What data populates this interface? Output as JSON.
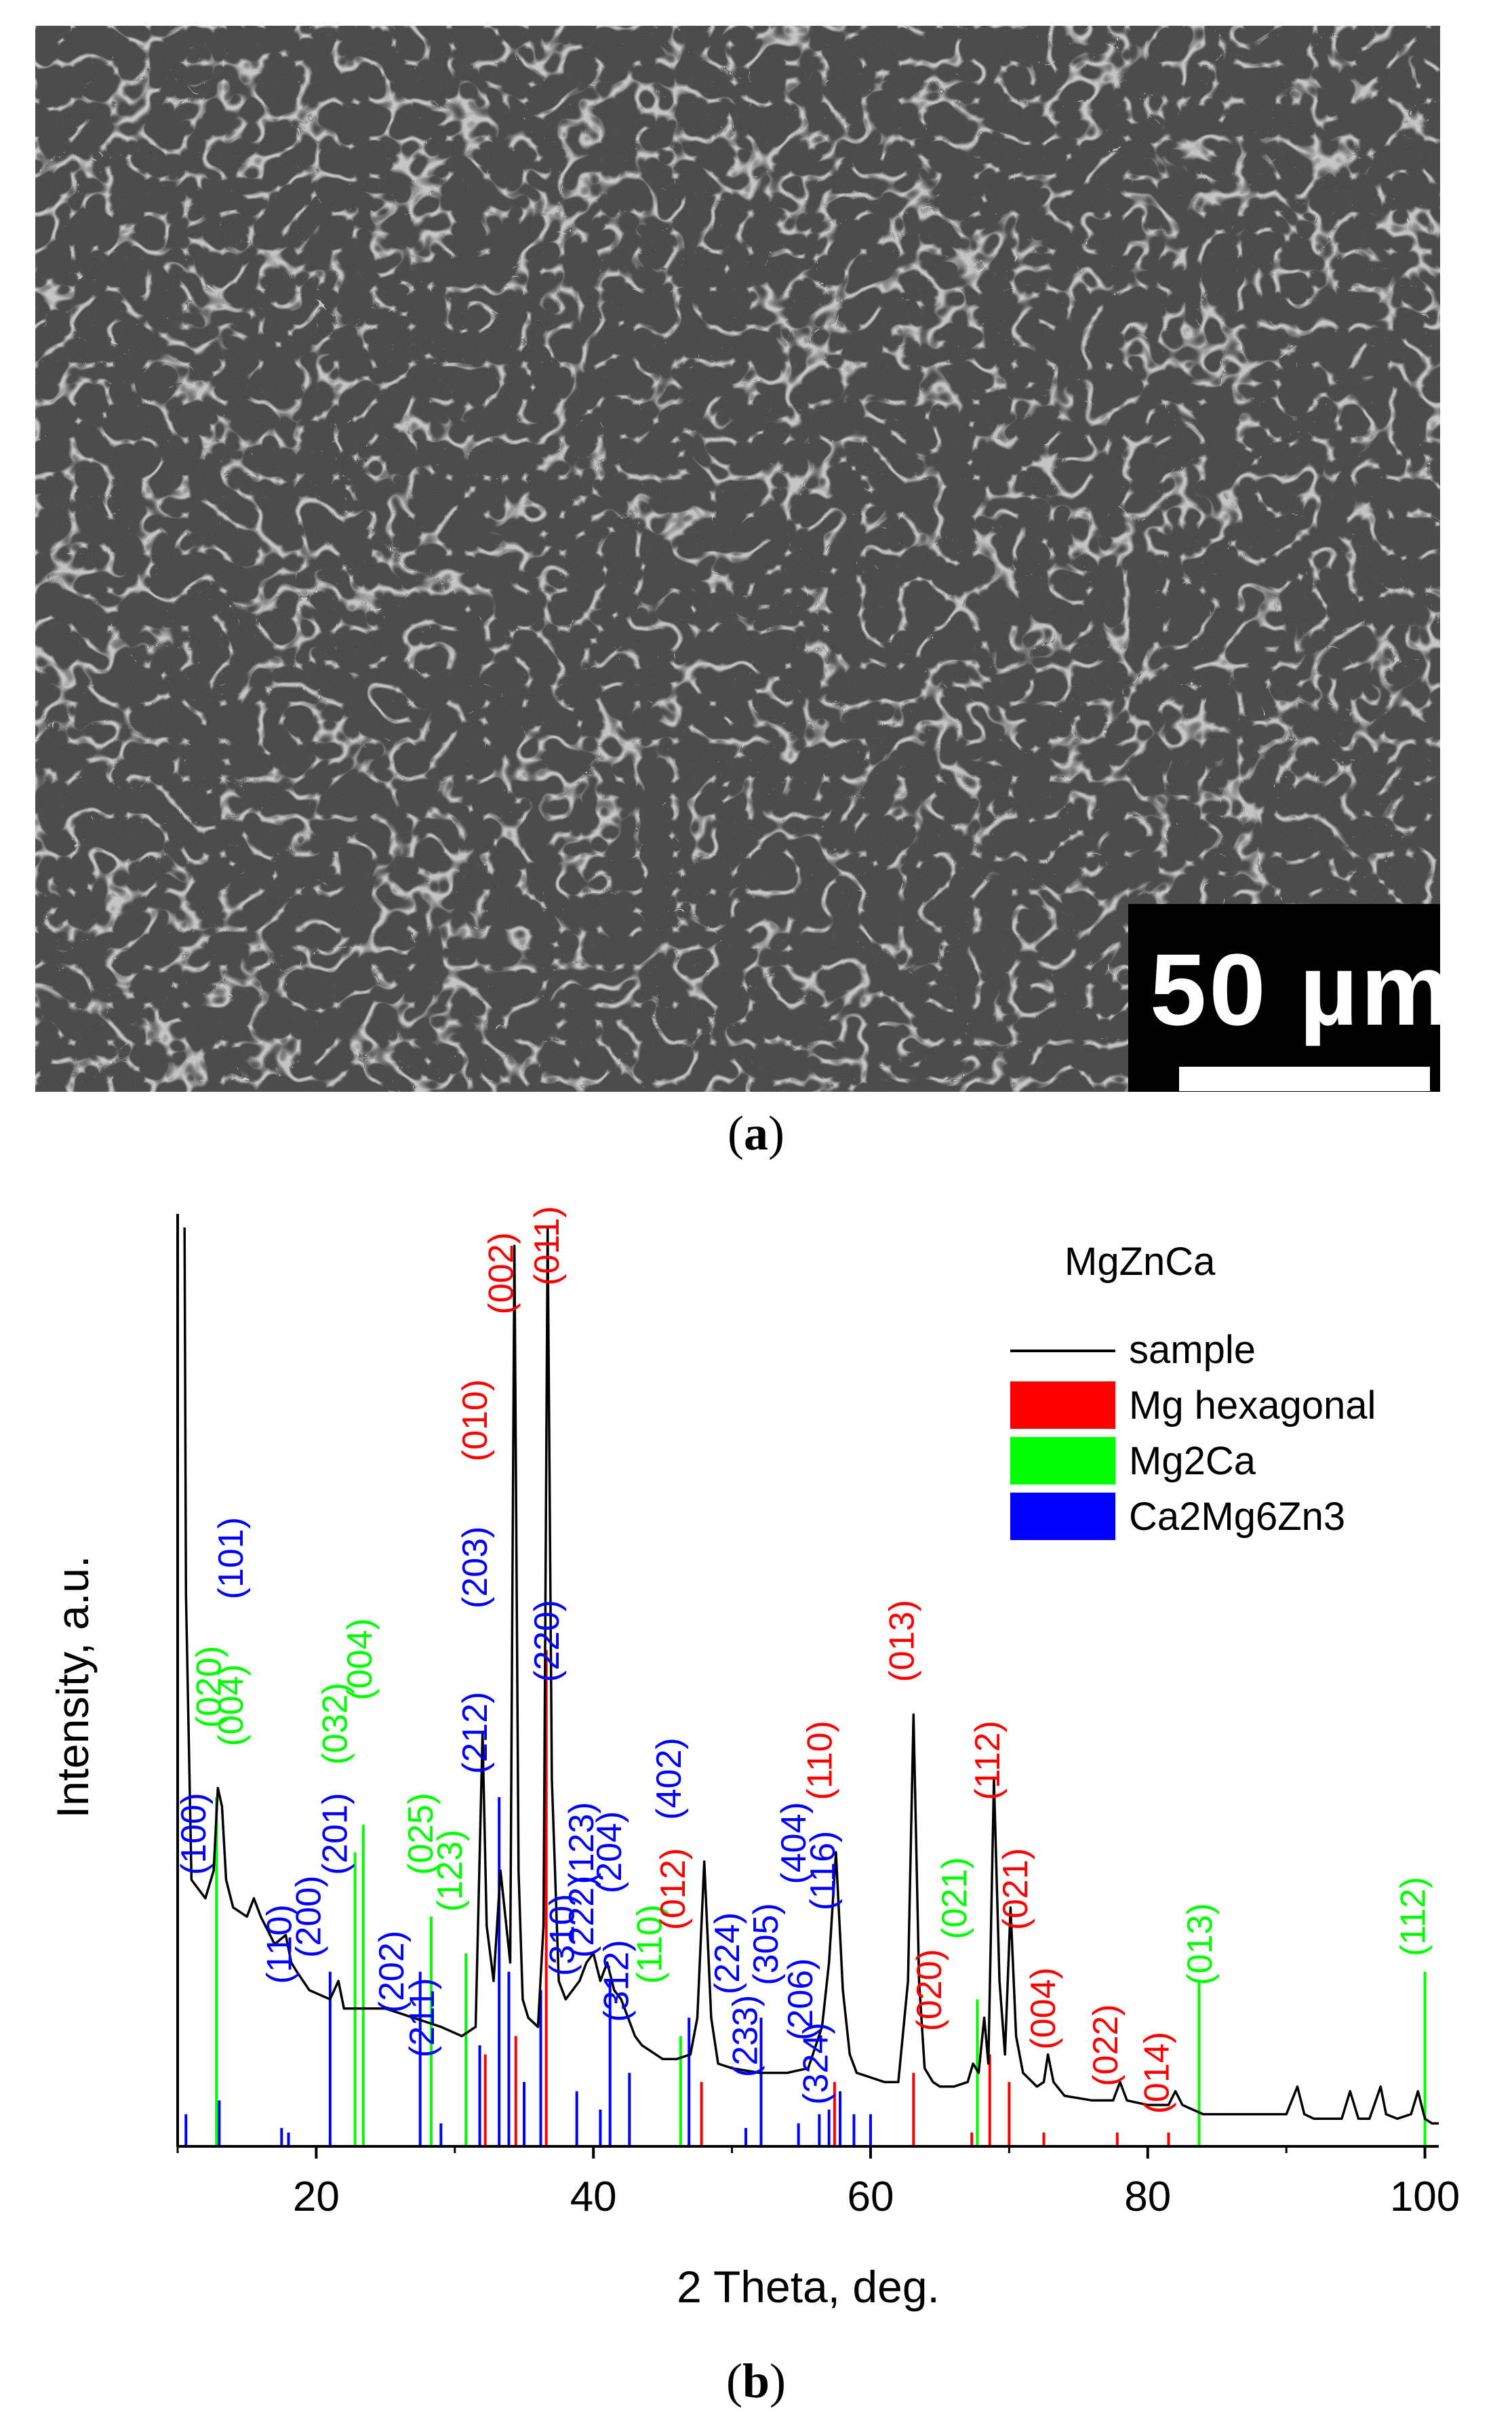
{
  "panel_a": {
    "scale_label": "50 µm",
    "caption": "a"
  },
  "panel_b": {
    "caption": "b"
  },
  "chart_data": {
    "type": "line",
    "xlabel": "2 Theta, deg.",
    "ylabel": "Intensity, a.u.",
    "xlim": [
      10,
      101
    ],
    "xticks": [
      20,
      40,
      60,
      80,
      100
    ],
    "ylim": [
      0,
      100
    ],
    "legend": {
      "title": "MgZnCa",
      "placement": "top-right",
      "entries": [
        {
          "name": "sample",
          "color": "#000000",
          "style": "line"
        },
        {
          "name": "Mg hexagonal",
          "color": "#ff0000",
          "style": "block"
        },
        {
          "name": "Mg2Ca",
          "color": "#00ff00",
          "style": "block"
        },
        {
          "name": "Ca2Mg6Zn3",
          "color": "#0000ff",
          "style": "block"
        }
      ]
    },
    "sample_curve": {
      "name": "sample",
      "x": [
        10.5,
        10.6,
        11,
        12,
        12.6,
        12.9,
        13.2,
        13.5,
        14,
        15,
        15.5,
        16,
        17,
        17.8,
        18.2,
        18.6,
        19.5,
        21,
        21.6,
        22,
        23,
        25,
        27,
        29,
        30.5,
        31.5,
        32,
        32.3,
        32.8,
        33.3,
        34,
        34.3,
        34.6,
        34.9,
        35.3,
        36,
        36.4,
        36.7,
        37,
        37.5,
        38,
        38.5,
        39,
        39.5,
        40,
        40.5,
        41,
        41.5,
        42,
        42.5,
        43,
        43.5,
        44,
        45,
        46,
        47,
        47.5,
        48,
        48.5,
        49,
        50,
        52,
        54,
        55.5,
        56.5,
        57,
        57.5,
        58,
        58.5,
        59,
        60,
        61,
        62,
        62.7,
        63.1,
        63.5,
        63.9,
        64.5,
        65,
        66,
        67,
        67.4,
        67.8,
        68.2,
        68.5,
        68.9,
        69.3,
        69.7,
        70.1,
        70.5,
        71,
        72,
        72.5,
        72.8,
        73.2,
        74,
        76,
        77.5,
        78,
        78.5,
        80,
        81.5,
        82,
        82.5,
        84,
        86,
        88,
        90,
        90.8,
        91.3,
        92,
        94,
        94.6,
        95.2,
        96,
        96.8,
        97.2,
        98,
        99,
        99.5,
        100,
        100.5,
        101
      ],
      "y": [
        100,
        60,
        29,
        27,
        30,
        39,
        37,
        29,
        26,
        25,
        27,
        25,
        22,
        23,
        20,
        19,
        17,
        16,
        18,
        15,
        15,
        15,
        14,
        13,
        12,
        13,
        45,
        24,
        18,
        30,
        20,
        98,
        30,
        16,
        14,
        13,
        24,
        100,
        40,
        18,
        16,
        17,
        18,
        20,
        21,
        18,
        20,
        17,
        16,
        14,
        12,
        11,
        10.5,
        9.5,
        9.5,
        10,
        14,
        31,
        14,
        9,
        8.5,
        8,
        8,
        8.5,
        13,
        20,
        32,
        17,
        10,
        8,
        7.5,
        7,
        7,
        18,
        47,
        18,
        8.5,
        7,
        6.5,
        6.5,
        7,
        9,
        8,
        14,
        9,
        40,
        18,
        10,
        26,
        12,
        8,
        6.5,
        7,
        10,
        7,
        5.5,
        5,
        5,
        7,
        5,
        4.5,
        4.5,
        6,
        4.5,
        3.5,
        3.5,
        3.5,
        3.5,
        6.5,
        3.5,
        3,
        3,
        6,
        3,
        3,
        6.5,
        3.5,
        3,
        3.5,
        6,
        3,
        2.5,
        2.5
      ]
    },
    "reference_lines": [
      {
        "phase": "Mg hexagonal",
        "color": "#ff0000",
        "positions": [
          32.2,
          34.4,
          36.6,
          47.8,
          57.4,
          63.1,
          67.3,
          68.6,
          70.0,
          72.5,
          77.8,
          81.5
        ],
        "heights": [
          10,
          12,
          54,
          7,
          7,
          8,
          1.5,
          10,
          7,
          1.5,
          1.5,
          1.5
        ]
      },
      {
        "phase": "Mg2Ca",
        "color": "#00ff00",
        "positions": [
          12.8,
          22.8,
          23.4,
          28.3,
          30.8,
          46.3,
          67.7,
          83.7,
          100.0
        ],
        "heights": [
          38,
          32,
          35,
          25,
          21,
          12,
          16,
          18,
          19
        ]
      },
      {
        "phase": "Ca2Mg6Zn3",
        "color": "#0000ff",
        "positions": [
          10.6,
          13.0,
          17.5,
          18.0,
          21.0,
          27.5,
          29.0,
          31.8,
          33.2,
          33.9,
          35.0,
          36.2,
          38.8,
          40.5,
          41.2,
          42.6,
          46.9,
          51.0,
          52.1,
          54.8,
          56.3,
          57.0,
          57.8,
          58.8,
          60.0
        ],
        "heights": [
          3.5,
          5,
          2,
          1.5,
          19,
          19,
          2.5,
          11,
          38,
          19,
          7,
          17,
          6,
          4,
          18,
          8,
          14,
          2,
          14,
          2.5,
          3.5,
          4,
          6,
          3.5,
          3.5
        ]
      }
    ],
    "peak_labels": [
      {
        "text": "(100)",
        "x": 12.0,
        "y": 34,
        "color": "#0000ff"
      },
      {
        "text": "(020)",
        "x": 13.1,
        "y": 50,
        "color": "#00ff00"
      },
      {
        "text": "(004)",
        "x": 14.7,
        "y": 48,
        "color": "#00ff00"
      },
      {
        "text": "(101)",
        "x": 14.7,
        "y": 64,
        "color": "#0000ff"
      },
      {
        "text": "(110)",
        "x": 18.2,
        "y": 22,
        "color": "#0000ff"
      },
      {
        "text": "(200)",
        "x": 20.3,
        "y": 25,
        "color": "#0000ff"
      },
      {
        "text": "(201)",
        "x": 22.2,
        "y": 34,
        "color": "#0000ff"
      },
      {
        "text": "(032)",
        "x": 22.2,
        "y": 46,
        "color": "#00ff00"
      },
      {
        "text": "(004)",
        "x": 24.0,
        "y": 53,
        "color": "#00ff00"
      },
      {
        "text": "(202)",
        "x": 26.3,
        "y": 19,
        "color": "#0000ff"
      },
      {
        "text": "(211)",
        "x": 28.5,
        "y": 14,
        "color": "#0000ff"
      },
      {
        "text": "(025)",
        "x": 28.4,
        "y": 34,
        "color": "#00ff00"
      },
      {
        "text": "(123)",
        "x": 30.5,
        "y": 30,
        "color": "#00ff00"
      },
      {
        "text": "(212)",
        "x": 32.3,
        "y": 45,
        "color": "#0000ff"
      },
      {
        "text": "(203)",
        "x": 32.3,
        "y": 63,
        "color": "#0000ff"
      },
      {
        "text": "(010)",
        "x": 32.3,
        "y": 79,
        "color": "#ff0000"
      },
      {
        "text": "(002)",
        "x": 34.2,
        "y": 95,
        "color": "#ff0000"
      },
      {
        "text": "(011)",
        "x": 37.5,
        "y": 98,
        "color": "#ff0000"
      },
      {
        "text": "(220)",
        "x": 37.5,
        "y": 55,
        "color": "#0000ff"
      },
      {
        "text": "(310)",
        "x": 38.6,
        "y": 23,
        "color": "#0000ff"
      },
      {
        "text": "(123)",
        "x": 40.0,
        "y": 33,
        "color": "#0000ff"
      },
      {
        "text": "(222)",
        "x": 40.0,
        "y": 25,
        "color": "#0000ff"
      },
      {
        "text": "(204)",
        "x": 42.0,
        "y": 32,
        "color": "#0000ff"
      },
      {
        "text": "(312)",
        "x": 42.5,
        "y": 18,
        "color": "#0000ff"
      },
      {
        "text": "(110)",
        "x": 44.9,
        "y": 22,
        "color": "#00ff00"
      },
      {
        "text": "(402)",
        "x": 46.3,
        "y": 40,
        "color": "#0000ff"
      },
      {
        "text": "(012)",
        "x": 46.6,
        "y": 28,
        "color": "#ff0000"
      },
      {
        "text": "(224)",
        "x": 50.5,
        "y": 21,
        "color": "#0000ff"
      },
      {
        "text": "(233)",
        "x": 51.8,
        "y": 12,
        "color": "#0000ff"
      },
      {
        "text": "(305)",
        "x": 53.3,
        "y": 22,
        "color": "#0000ff"
      },
      {
        "text": "(404)",
        "x": 55.3,
        "y": 33,
        "color": "#0000ff"
      },
      {
        "text": "(110)",
        "x": 57.2,
        "y": 42,
        "color": "#ff0000"
      },
      {
        "text": "(206)",
        "x": 55.8,
        "y": 16,
        "color": "#0000ff"
      },
      {
        "text": "(116)",
        "x": 57.4,
        "y": 30,
        "color": "#0000ff"
      },
      {
        "text": "(324)",
        "x": 56.9,
        "y": 9,
        "color": "#0000ff"
      },
      {
        "text": "(013)",
        "x": 63.1,
        "y": 55,
        "color": "#ff0000"
      },
      {
        "text": "(020)",
        "x": 65.1,
        "y": 17,
        "color": "#ff0000"
      },
      {
        "text": "(021)",
        "x": 66.9,
        "y": 27,
        "color": "#00ff00"
      },
      {
        "text": "(112)",
        "x": 69.3,
        "y": 42,
        "color": "#ff0000"
      },
      {
        "text": "(021)",
        "x": 71.3,
        "y": 28,
        "color": "#ff0000"
      },
      {
        "text": "(004)",
        "x": 73.3,
        "y": 15,
        "color": "#ff0000"
      },
      {
        "text": "(022)",
        "x": 77.8,
        "y": 11,
        "color": "#ff0000"
      },
      {
        "text": "(014)",
        "x": 81.5,
        "y": 8,
        "color": "#ff0000"
      },
      {
        "text": "(013)",
        "x": 84.6,
        "y": 22,
        "color": "#00ff00"
      },
      {
        "text": "(112)",
        "x": 100.0,
        "y": 25,
        "color": "#00ff00"
      }
    ]
  }
}
